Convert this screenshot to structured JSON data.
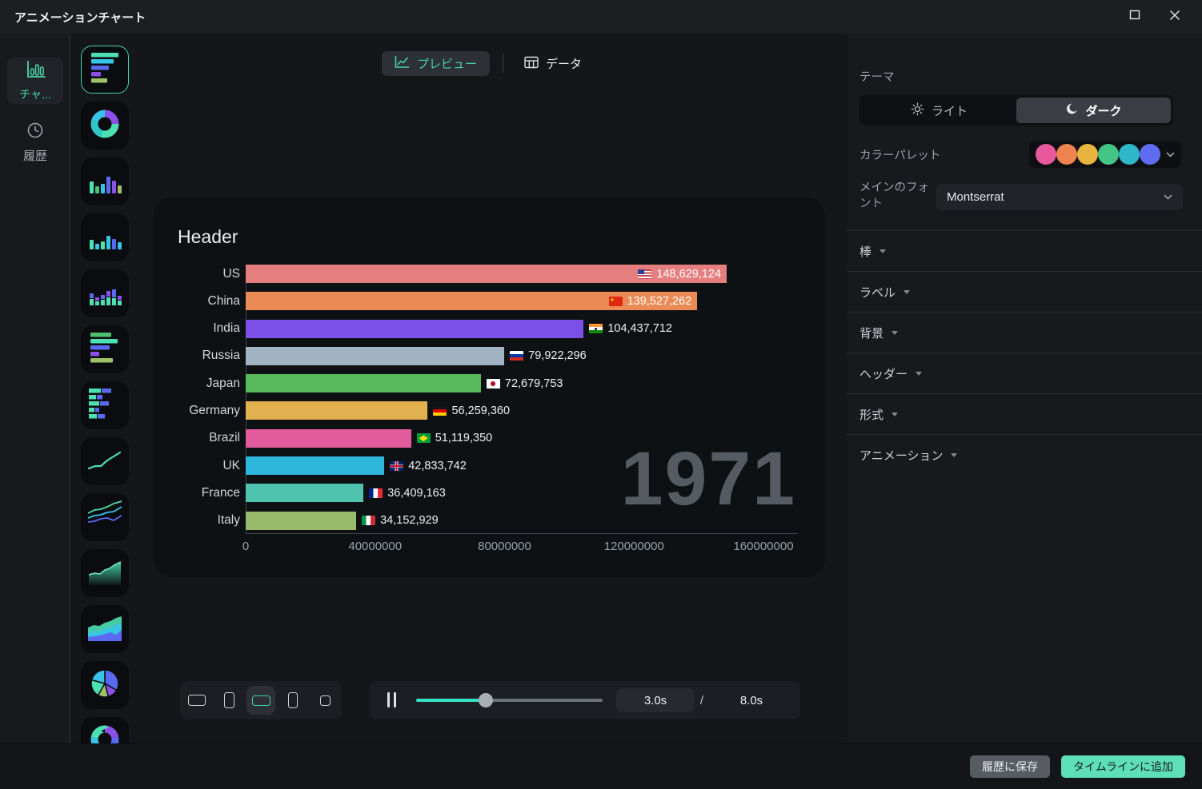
{
  "window": {
    "title": "アニメーションチャート"
  },
  "nav": {
    "chart_label": "チャ...",
    "history_label": "履歴"
  },
  "chart_types": [
    {
      "id": "bar-race",
      "selected": true
    },
    {
      "id": "donut",
      "selected": false
    },
    {
      "id": "column",
      "selected": false
    },
    {
      "id": "column2",
      "selected": false
    },
    {
      "id": "stacked-column",
      "selected": false
    },
    {
      "id": "bars",
      "selected": false
    },
    {
      "id": "stacked-bars",
      "selected": false
    },
    {
      "id": "line",
      "selected": false
    },
    {
      "id": "multi-line",
      "selected": false
    },
    {
      "id": "area",
      "selected": false
    },
    {
      "id": "stacked-area",
      "selected": false
    },
    {
      "id": "pie",
      "selected": false
    },
    {
      "id": "donut2",
      "selected": false
    }
  ],
  "tabs": {
    "preview": "プレビュー",
    "data": "データ"
  },
  "chart_data": {
    "type": "bar",
    "orientation": "horizontal",
    "title": "Header",
    "year_label": "1971",
    "categories": [
      "US",
      "China",
      "India",
      "Russia",
      "Japan",
      "Germany",
      "Brazil",
      "UK",
      "France",
      "Italy"
    ],
    "values": [
      148629124,
      139527262,
      104437712,
      79922296,
      72679753,
      56259360,
      51119350,
      42833742,
      36409163,
      34152929
    ],
    "value_labels": [
      "148,629,124",
      "139,527,262",
      "104,437,712",
      "79,922,296",
      "72,679,753",
      "56,259,360",
      "51,119,350",
      "42,833,742",
      "36,409,163",
      "34,152,929"
    ],
    "bar_colors": [
      "#e57f7f",
      "#ea8a55",
      "#7c50e8",
      "#a2b4c4",
      "#58b95c",
      "#e2b14f",
      "#e25b9c",
      "#2cb6dc",
      "#4fc3ad",
      "#97bb6a"
    ],
    "flags": [
      "us",
      "cn",
      "in",
      "ru",
      "jp",
      "de",
      "br",
      "gb",
      "fr",
      "it"
    ],
    "label_inside": [
      true,
      true,
      false,
      false,
      false,
      false,
      false,
      false,
      false,
      false
    ],
    "xlim": [
      0,
      160000000
    ],
    "x_ticks": [
      "0",
      "40000000",
      "80000000",
      "120000000",
      "160000000"
    ],
    "grid": false,
    "legend": false
  },
  "controls": {
    "aspect_options": [
      {
        "id": "16-9",
        "selected": false
      },
      {
        "id": "9-16",
        "selected": false
      },
      {
        "id": "21-9",
        "selected": true
      },
      {
        "id": "4-5",
        "selected": false
      },
      {
        "id": "1-1",
        "selected": false
      }
    ],
    "current_time": "3.0s",
    "separator": "/",
    "total_time": "8.0s",
    "progress": 0.375
  },
  "panel": {
    "theme_label": "テーマ",
    "light_label": "ライト",
    "dark_label": "ダーク",
    "active_theme": "dark",
    "palette_label": "カラーパレット",
    "palette_colors": [
      "#e8589c",
      "#ef8350",
      "#e7b43e",
      "#43c585",
      "#2eb7c9",
      "#5f6cf0"
    ],
    "font_label": "メインのフォント",
    "font_value": "Montserrat",
    "sections": [
      "棒",
      "ラベル",
      "背景",
      "ヘッダー",
      "形式",
      "アニメーション"
    ]
  },
  "footer": {
    "save_history": "履歴に保存",
    "add_timeline": "タイムラインに追加"
  }
}
